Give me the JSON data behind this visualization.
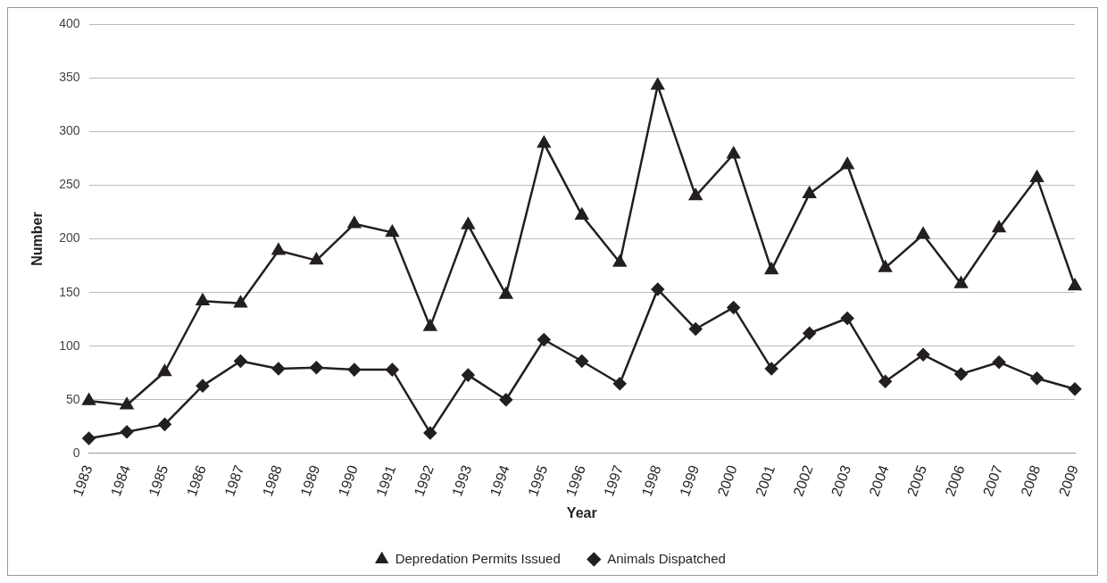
{
  "chart_data": {
    "type": "line",
    "xlabel": "Year",
    "ylabel": "Number",
    "categories": [
      "1983",
      "1984",
      "1985",
      "1986",
      "1987",
      "1988",
      "1989",
      "1990",
      "1991",
      "1992",
      "1993",
      "1994",
      "1995",
      "1996",
      "1997",
      "1998",
      "1999",
      "2000",
      "2001",
      "2002",
      "2003",
      "2004",
      "2005",
      "2006",
      "2007",
      "2008",
      "2009"
    ],
    "series": [
      {
        "name": "Depredation Permits Issued",
        "color": "#231f20",
        "marker": "triangle",
        "values": [
          49,
          45,
          76,
          142,
          140,
          189,
          180,
          214,
          206,
          118,
          213,
          148,
          289,
          222,
          178,
          343,
          240,
          279,
          171,
          242,
          269,
          173,
          204,
          158,
          210,
          257,
          156
        ]
      },
      {
        "name": "Animals Dispatched",
        "color": "#231f20",
        "marker": "diamond",
        "values": [
          14,
          20,
          27,
          63,
          86,
          79,
          80,
          78,
          78,
          19,
          73,
          50,
          106,
          86,
          65,
          153,
          116,
          136,
          79,
          112,
          126,
          67,
          92,
          74,
          85,
          70,
          60
        ]
      }
    ],
    "ylim": [
      0,
      400
    ],
    "yticks": [
      0,
      50,
      100,
      150,
      200,
      250,
      300,
      350,
      400
    ],
    "grid": "y",
    "legend": "bottom",
    "line_style": "solid"
  }
}
